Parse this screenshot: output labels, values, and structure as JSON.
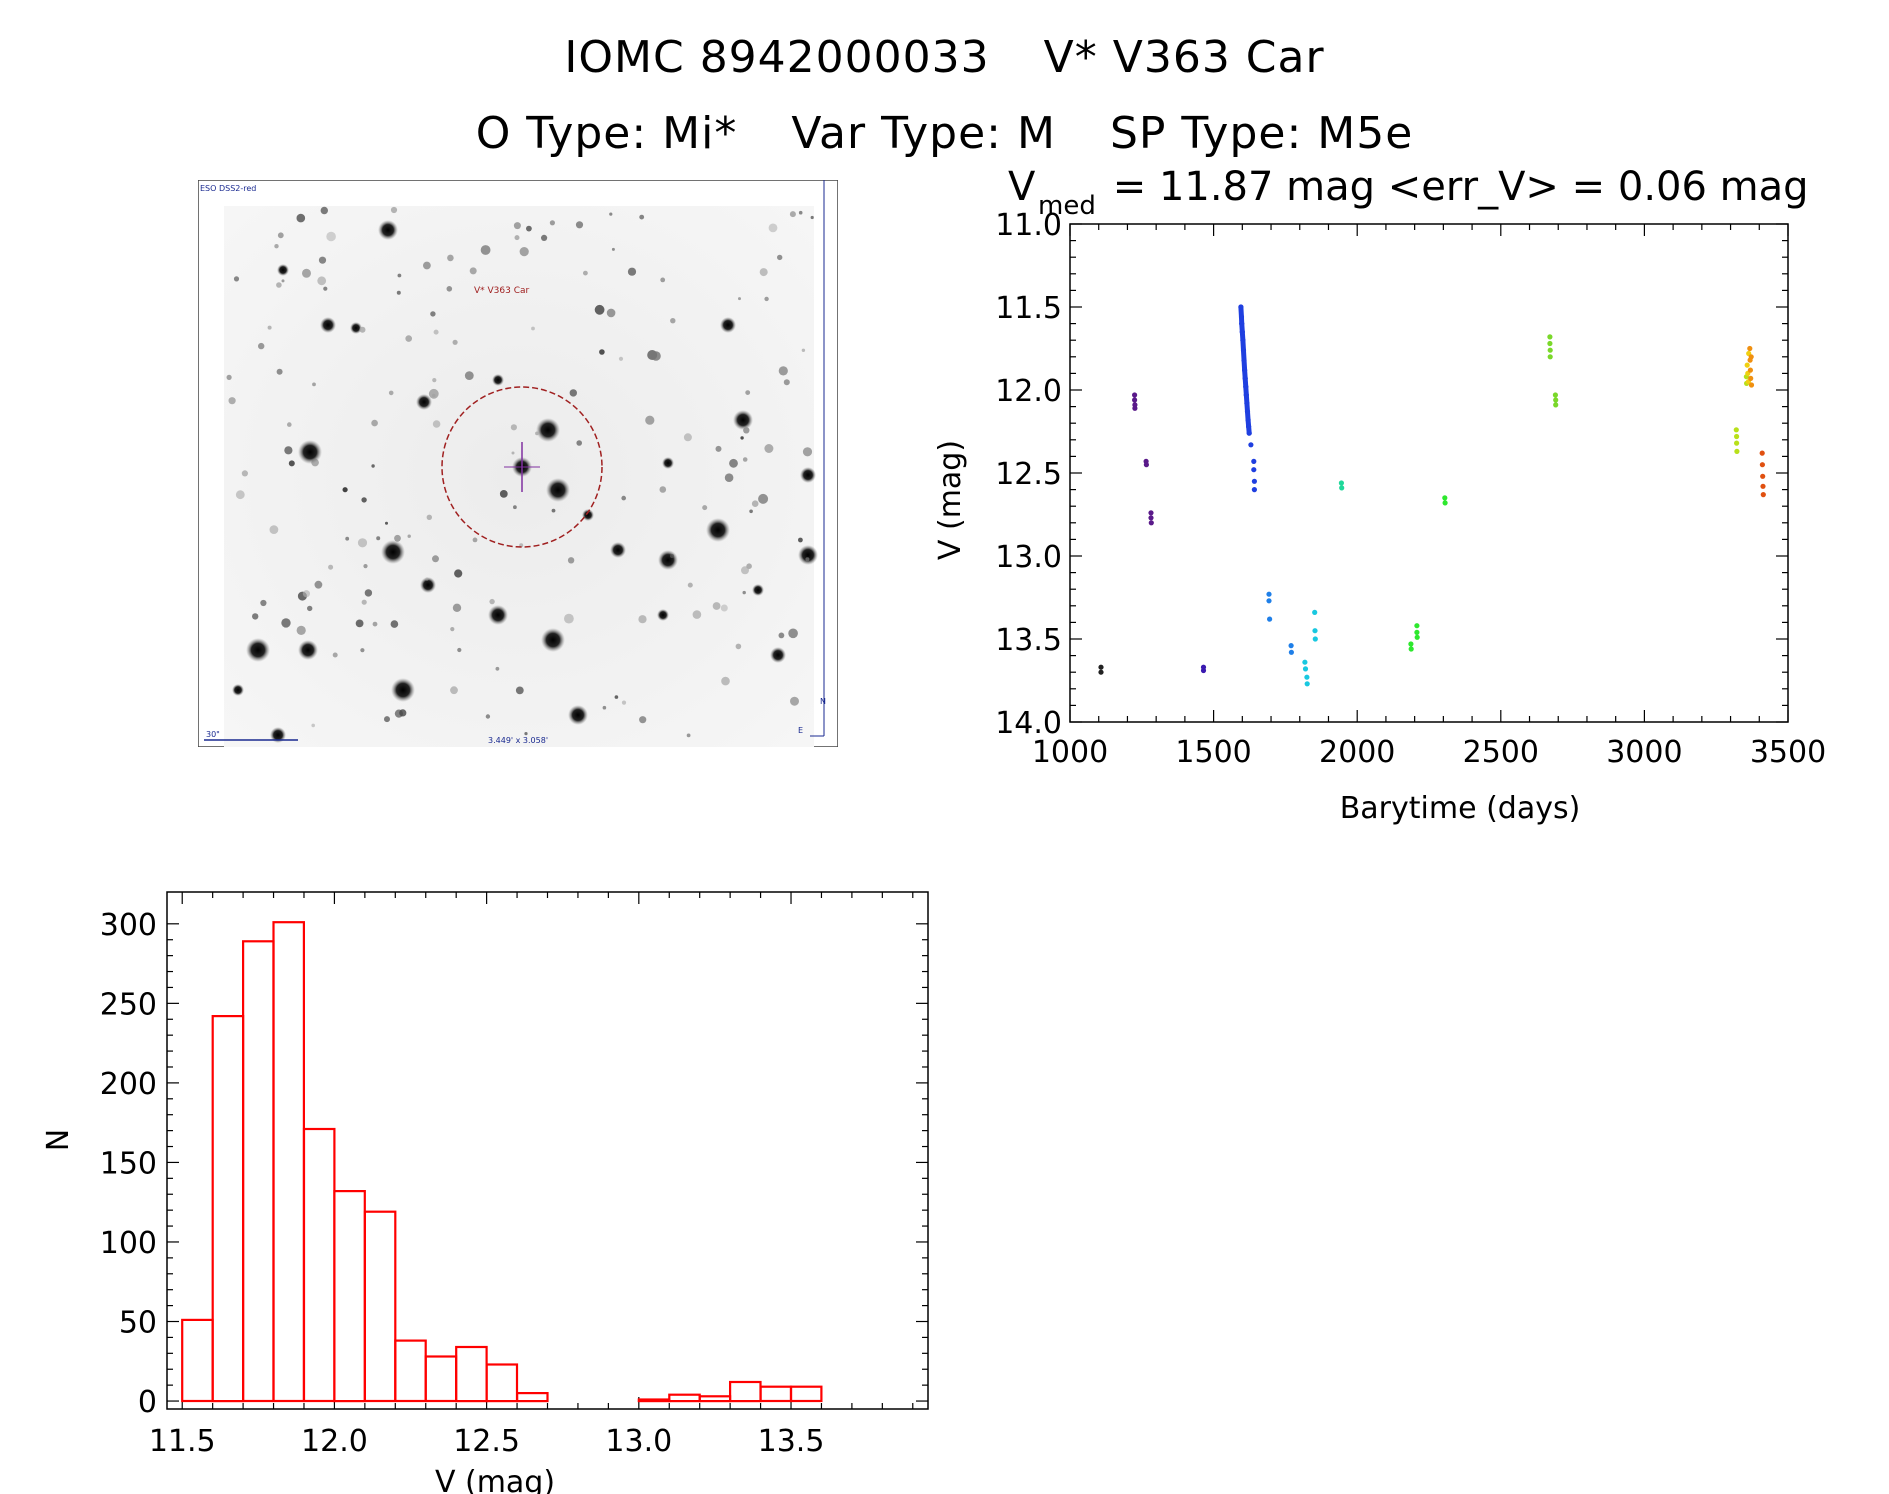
{
  "title": {
    "main_left": "IOMC 8942000033",
    "main_right": "V* V363 Car",
    "otype": "O Type: Mi*",
    "vartype": "Var Type: M",
    "sptype": "SP Type: M5e"
  },
  "sky_image": {
    "survey_label": "ESO DSS2-red",
    "target_label": "V* V363 Car",
    "scale_label": "30\"",
    "fov_label": "3.449' x 3.058'",
    "north_label": "N",
    "east_label": "E"
  },
  "chart_data": [
    {
      "type": "scatter",
      "title_prefix": "V",
      "title_subscript": "med",
      "title_rest": " = 11.87 mag <err_V> = 0.06 mag",
      "xlabel": "Barytime (days)",
      "ylabel": "V (mag)",
      "xlim": [
        1000,
        3500
      ],
      "ylim": [
        14.0,
        11.0
      ],
      "y_inverted": true,
      "xticks": [
        "1000",
        "1500",
        "2000",
        "2500",
        "3000",
        "3500"
      ],
      "yticks": [
        "11.0",
        "11.5",
        "12.0",
        "12.5",
        "13.0",
        "13.5",
        "14.0"
      ],
      "series": [
        {
          "color": "#222222",
          "points": [
            [
              1108,
              13.67
            ],
            [
              1108,
              13.7
            ]
          ]
        },
        {
          "color": "#5a1a8a",
          "points": [
            [
              1225,
              12.03
            ],
            [
              1225,
              12.06
            ],
            [
              1226,
              12.09
            ],
            [
              1226,
              12.11
            ],
            [
              1265,
              12.43
            ],
            [
              1266,
              12.45
            ],
            [
              1282,
              12.74
            ],
            [
              1282,
              12.77
            ],
            [
              1283,
              12.8
            ]
          ]
        },
        {
          "color": "#3a1ab0",
          "points": [
            [
              1465,
              13.67
            ],
            [
              1465,
              13.69
            ]
          ]
        },
        {
          "color": "#1f3fe0",
          "points": [
            [
              1595,
              11.5
            ],
            [
              1597,
              11.56
            ],
            [
              1598,
              11.6
            ],
            [
              1600,
              11.65
            ],
            [
              1602,
              11.7
            ],
            [
              1604,
              11.76
            ],
            [
              1606,
              11.82
            ],
            [
              1608,
              11.88
            ],
            [
              1610,
              11.93
            ],
            [
              1612,
              11.98
            ],
            [
              1614,
              12.03
            ],
            [
              1616,
              12.08
            ],
            [
              1618,
              12.13
            ],
            [
              1620,
              12.18
            ],
            [
              1622,
              12.22
            ],
            [
              1624,
              12.26
            ],
            [
              1630,
              12.33
            ],
            [
              1640,
              12.43
            ],
            [
              1640,
              12.48
            ],
            [
              1642,
              12.55
            ],
            [
              1642,
              12.6
            ]
          ]
        },
        {
          "color": "#1f7fe8",
          "points": [
            [
              1693,
              13.23
            ],
            [
              1693,
              13.27
            ],
            [
              1695,
              13.38
            ],
            [
              1770,
              13.54
            ],
            [
              1771,
              13.58
            ]
          ]
        },
        {
          "color": "#19c8e0",
          "points": [
            [
              1818,
              13.64
            ],
            [
              1820,
              13.68
            ],
            [
              1825,
              13.73
            ],
            [
              1826,
              13.77
            ],
            [
              1852,
              13.34
            ],
            [
              1853,
              13.45
            ],
            [
              1854,
              13.5
            ]
          ]
        },
        {
          "color": "#1fd89a",
          "points": [
            [
              1945,
              12.56
            ],
            [
              1946,
              12.59
            ]
          ]
        },
        {
          "color": "#2ee82e",
          "points": [
            [
              2187,
              13.53
            ],
            [
              2188,
              13.56
            ],
            [
              2208,
              13.42
            ],
            [
              2208,
              13.46
            ],
            [
              2209,
              13.49
            ],
            [
              2305,
              12.65
            ],
            [
              2306,
              12.68
            ]
          ]
        },
        {
          "color": "#7ad82a",
          "points": [
            [
              2671,
              11.68
            ],
            [
              2671,
              11.72
            ],
            [
              2672,
              11.76
            ],
            [
              2672,
              11.8
            ],
            [
              2690,
              12.03
            ],
            [
              2691,
              12.06
            ],
            [
              2691,
              12.09
            ]
          ]
        },
        {
          "color": "#b8e01a",
          "points": [
            [
              3320,
              12.24
            ],
            [
              3321,
              12.28
            ],
            [
              3321,
              12.32
            ],
            [
              3322,
              12.37
            ],
            [
              3355,
              11.92
            ],
            [
              3356,
              11.96
            ]
          ]
        },
        {
          "color": "#f0d010",
          "points": [
            [
              3358,
              11.85
            ],
            [
              3360,
              11.9
            ],
            [
              3362,
              11.95
            ],
            [
              3363,
              11.78
            ]
          ]
        },
        {
          "color": "#f09010",
          "points": [
            [
              3367,
              11.75
            ],
            [
              3368,
              11.82
            ],
            [
              3369,
              11.88
            ],
            [
              3370,
              11.93
            ],
            [
              3372,
              11.8
            ],
            [
              3373,
              11.97
            ]
          ]
        },
        {
          "color": "#e05010",
          "points": [
            [
              3410,
              12.38
            ],
            [
              3411,
              12.45
            ],
            [
              3412,
              12.52
            ],
            [
              3413,
              12.58
            ],
            [
              3414,
              12.63
            ]
          ]
        }
      ]
    },
    {
      "type": "bar",
      "xlabel": "V (mag)",
      "ylabel": "N",
      "xlim": [
        11.45,
        13.95
      ],
      "ylim": [
        0,
        300
      ],
      "bin_width": 0.1,
      "bin_start": 11.5,
      "xticks": [
        "11.5",
        "12.0",
        "12.5",
        "13.0",
        "13.5"
      ],
      "yticks": [
        "0",
        "50",
        "100",
        "150",
        "200",
        "250",
        "300"
      ],
      "values": [
        51,
        242,
        289,
        301,
        171,
        132,
        119,
        38,
        28,
        34,
        23,
        5,
        0,
        0,
        0,
        1,
        4,
        3,
        12,
        9,
        9
      ],
      "color": "#ff0000"
    }
  ]
}
